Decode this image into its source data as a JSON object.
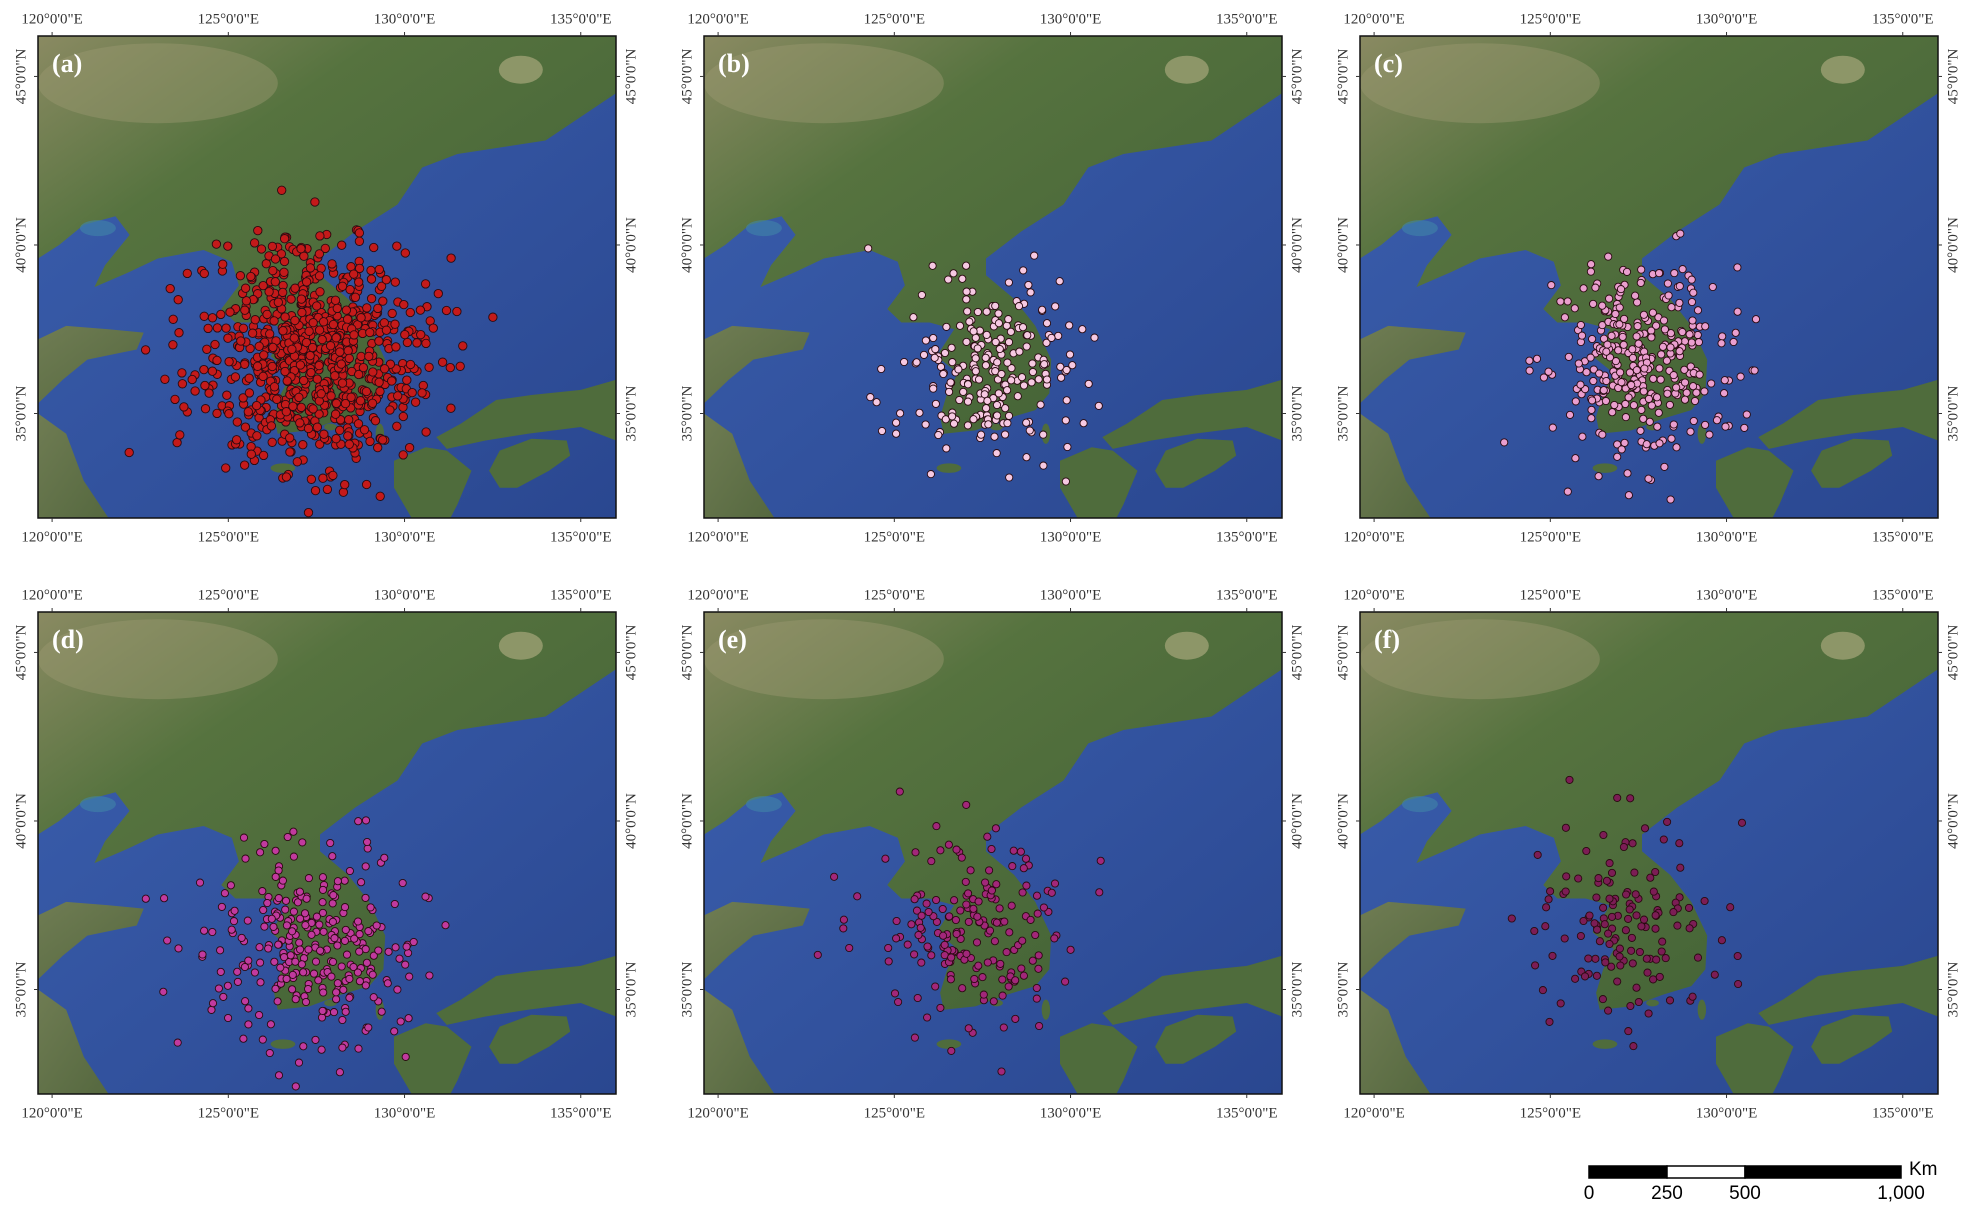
{
  "panels": [
    {
      "label": "(a)",
      "marker_color": "#c41a1a"
    },
    {
      "label": "(b)",
      "marker_color": "#f6c9e2"
    },
    {
      "label": "(c)",
      "marker_color": "#ea9fcf"
    },
    {
      "label": "(d)",
      "marker_color": "#c13a9e"
    },
    {
      "label": "(e)",
      "marker_color": "#a2277a"
    },
    {
      "label": "(f)",
      "marker_color": "#7c1d55"
    }
  ],
  "extent": {
    "lon": [
      119.6,
      136
    ],
    "lat": [
      31.9,
      46.2
    ]
  },
  "lon_ticks": [
    {
      "value": 120,
      "label": "120°0'0\"E"
    },
    {
      "value": 125,
      "label": "125°0'0\"E"
    },
    {
      "value": 130,
      "label": "130°0'0\"E"
    },
    {
      "value": 135,
      "label": "135°0'0\"E"
    }
  ],
  "lat_ticks": [
    {
      "value": 35,
      "label": "35°0'0\"N"
    },
    {
      "value": 40,
      "label": "40°0'0\"N"
    },
    {
      "value": 45,
      "label": "45°0'0\"N"
    }
  ],
  "scale_bar": {
    "unit": "Km",
    "ticks": [
      0,
      250,
      500,
      {
        "value": 1000,
        "label": "1,000"
      }
    ]
  }
}
